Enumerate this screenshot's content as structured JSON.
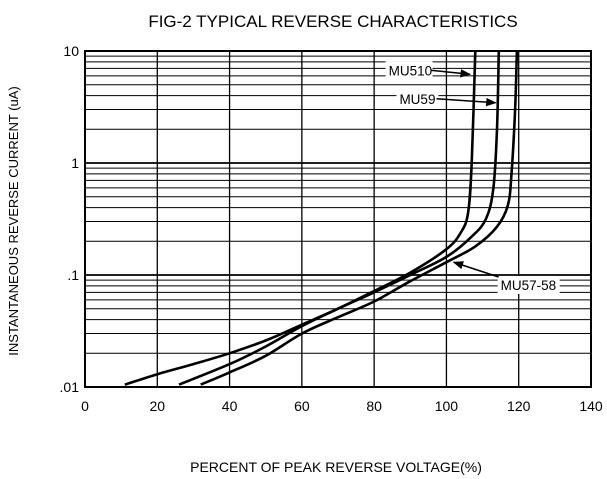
{
  "chart_data": {
    "type": "line",
    "title": "FIG-2 TYPICAL REVERSE CHARACTERISTICS",
    "xlabel": "PERCENT OF PEAK REVERSE VOLTAGE(%)",
    "ylabel": "INSTANTANEOUS REVERSE CURRENT (uA)",
    "xlim": [
      0,
      140
    ],
    "ylim": [
      0.01,
      10
    ],
    "yscale": "log",
    "grid": true,
    "x_ticks": [
      0,
      20,
      40,
      60,
      80,
      100,
      120,
      140
    ],
    "x_tick_labels": [
      "0",
      "20",
      "40",
      "60",
      "80",
      "100",
      "120",
      "140"
    ],
    "y_ticks": [
      0.01,
      0.1,
      1,
      10
    ],
    "y_tick_labels": [
      ".01",
      ".1",
      "1",
      "10"
    ],
    "series": [
      {
        "name": "MU510",
        "points": [
          [
            11,
            0.0105
          ],
          [
            20,
            0.013
          ],
          [
            30,
            0.016
          ],
          [
            40,
            0.02
          ],
          [
            50,
            0.026
          ],
          [
            60,
            0.036
          ],
          [
            70,
            0.05
          ],
          [
            80,
            0.072
          ],
          [
            90,
            0.105
          ],
          [
            100,
            0.17
          ],
          [
            104,
            0.24
          ],
          [
            106,
            0.36
          ],
          [
            107,
            1.0
          ],
          [
            108,
            10.0
          ]
        ]
      },
      {
        "name": "MU59",
        "points": [
          [
            26,
            0.0105
          ],
          [
            40,
            0.016
          ],
          [
            50,
            0.023
          ],
          [
            60,
            0.035
          ],
          [
            70,
            0.05
          ],
          [
            80,
            0.07
          ],
          [
            90,
            0.1
          ],
          [
            100,
            0.145
          ],
          [
            107,
            0.22
          ],
          [
            111,
            0.32
          ],
          [
            113,
            0.6
          ],
          [
            114,
            2.0
          ],
          [
            114.5,
            10.0
          ]
        ]
      },
      {
        "name": "MU57-58",
        "points": [
          [
            32,
            0.0105
          ],
          [
            40,
            0.0135
          ],
          [
            50,
            0.019
          ],
          [
            60,
            0.03
          ],
          [
            70,
            0.042
          ],
          [
            80,
            0.058
          ],
          [
            90,
            0.088
          ],
          [
            100,
            0.13
          ],
          [
            108,
            0.18
          ],
          [
            114,
            0.27
          ],
          [
            117,
            0.42
          ],
          [
            118,
            0.8
          ],
          [
            119,
            3.0
          ],
          [
            119.5,
            10.0
          ]
        ]
      }
    ],
    "annotations": [
      {
        "text": "MU510",
        "points_to": "MU510"
      },
      {
        "text": "MU59",
        "points_to": "MU59"
      },
      {
        "text": "MU57-58",
        "points_to": "MU57-58"
      }
    ]
  }
}
